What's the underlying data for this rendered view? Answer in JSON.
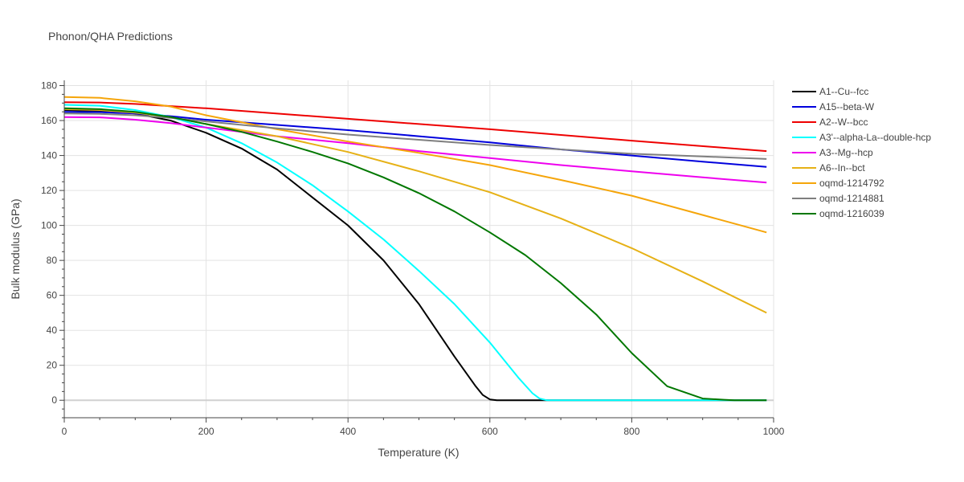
{
  "chart_data": {
    "type": "line",
    "title": "Phonon/QHA Predictions",
    "xlabel": "Temperature (K)",
    "ylabel": "Bulk modulus (GPa)",
    "xlim": [
      0,
      1000
    ],
    "ylim": [
      -10,
      183
    ],
    "xticks": [
      0,
      200,
      400,
      600,
      800,
      1000
    ],
    "yticks": [
      0,
      20,
      40,
      60,
      80,
      100,
      120,
      140,
      160,
      180
    ],
    "grid": true,
    "legend_position": "right",
    "series": [
      {
        "name": "A1--Cu--fcc",
        "color": "#000000",
        "x": [
          0,
          50,
          100,
          150,
          200,
          250,
          300,
          350,
          400,
          450,
          500,
          550,
          580,
          590,
          600,
          610,
          650,
          990
        ],
        "y": [
          166,
          165.5,
          164,
          160,
          153,
          144,
          132,
          116,
          100,
          80,
          55,
          25,
          8,
          3,
          0.5,
          0,
          0,
          0
        ]
      },
      {
        "name": "A15--beta-W",
        "color": "#0000dd",
        "x": [
          0,
          50,
          100,
          150,
          200,
          300,
          400,
          500,
          600,
          700,
          800,
          900,
          990
        ],
        "y": [
          165,
          164.8,
          164,
          162.5,
          160.5,
          157.5,
          154.5,
          151,
          147.5,
          143.5,
          140,
          136.5,
          133.5
        ]
      },
      {
        "name": "A2--W--bcc",
        "color": "#ee0000",
        "x": [
          0,
          50,
          100,
          200,
          400,
          600,
          800,
          990
        ],
        "y": [
          170.5,
          170.3,
          169.5,
          167,
          161,
          155,
          148.5,
          142.5
        ]
      },
      {
        "name": "A3'--alpha-La--double-hcp",
        "color": "#00ffff",
        "x": [
          0,
          50,
          100,
          150,
          200,
          250,
          300,
          350,
          400,
          450,
          500,
          550,
          600,
          640,
          660,
          670,
          680,
          700,
          990
        ],
        "y": [
          169,
          168.5,
          166,
          162,
          156,
          147,
          136,
          123,
          108,
          92,
          74,
          55,
          33,
          13,
          4,
          1,
          0,
          0,
          0
        ]
      },
      {
        "name": "A3--Mg--hcp",
        "color": "#ee00ee",
        "x": [
          0,
          50,
          100,
          150,
          200,
          300,
          400,
          500,
          600,
          700,
          800,
          900,
          990
        ],
        "y": [
          162,
          161.8,
          160.5,
          158.5,
          156,
          151,
          147,
          142.5,
          138.5,
          134.5,
          131,
          127.5,
          124.5
        ]
      },
      {
        "name": "A6--In--bct",
        "color": "#e6b116",
        "x": [
          0,
          50,
          100,
          150,
          200,
          300,
          400,
          500,
          600,
          700,
          800,
          900,
          990
        ],
        "y": [
          166.5,
          166,
          164.5,
          162,
          158,
          151,
          142,
          131,
          119,
          104,
          87,
          68,
          50
        ]
      },
      {
        "name": "oqmd-1214792",
        "color": "#f5a50a",
        "x": [
          0,
          50,
          100,
          150,
          200,
          300,
          400,
          500,
          600,
          700,
          800,
          900,
          990
        ],
        "y": [
          173.5,
          173,
          171,
          168,
          163,
          155,
          148,
          141.5,
          134.5,
          126,
          117,
          106,
          96
        ]
      },
      {
        "name": "oqmd-1214881",
        "color": "#7f7f7f",
        "x": [
          0,
          50,
          100,
          150,
          200,
          300,
          400,
          500,
          600,
          700,
          800,
          900,
          990
        ],
        "y": [
          164,
          163.8,
          163,
          161.5,
          159.5,
          155.5,
          152,
          149,
          146,
          143.5,
          141,
          139.5,
          138
        ]
      },
      {
        "name": "oqmd-1216039",
        "color": "#007700",
        "x": [
          0,
          50,
          100,
          150,
          200,
          250,
          300,
          350,
          400,
          450,
          500,
          550,
          600,
          650,
          700,
          750,
          800,
          850,
          900,
          930,
          945,
          955,
          990
        ],
        "y": [
          167,
          166.5,
          165,
          162,
          158,
          153.5,
          148,
          142,
          135.5,
          127.5,
          118.5,
          108,
          96,
          83,
          67,
          49,
          27,
          8,
          1,
          0.3,
          0,
          0,
          0
        ]
      }
    ]
  }
}
